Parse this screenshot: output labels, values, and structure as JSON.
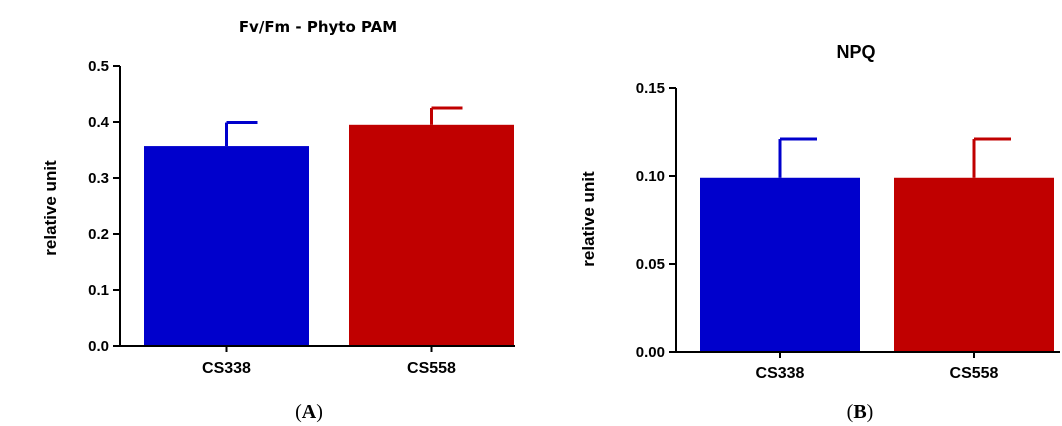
{
  "chart_data": [
    {
      "type": "bar",
      "title": "Fv/Fm - Phyto PAM",
      "ylabel": "relative unit",
      "xlabel": "",
      "categories": [
        "CS338",
        "CS558"
      ],
      "values": [
        0.357,
        0.395
      ],
      "errors": [
        0.042,
        0.03
      ],
      "colors": [
        "#0000cc",
        "#c00000"
      ],
      "ylim": [
        0,
        0.5
      ],
      "yticks": [
        "0.0",
        "0.1",
        "0.2",
        "0.3",
        "0.4",
        "0.5"
      ],
      "ytick_values": [
        0,
        0.1,
        0.2,
        0.3,
        0.4,
        0.5
      ],
      "grid": false,
      "panel_label": "A"
    },
    {
      "type": "bar",
      "title": "NPQ",
      "ylabel": "relative unit",
      "xlabel": "",
      "categories": [
        "CS338",
        "CS558"
      ],
      "values": [
        0.099,
        0.099
      ],
      "errors": [
        0.022,
        0.022
      ],
      "colors": [
        "#0000cc",
        "#c00000"
      ],
      "ylim": [
        0,
        0.15
      ],
      "yticks": [
        "0.00",
        "0.05",
        "0.10",
        "0.15"
      ],
      "ytick_values": [
        0,
        0.05,
        0.1,
        0.15
      ],
      "grid": false,
      "panel_label": "B"
    }
  ]
}
